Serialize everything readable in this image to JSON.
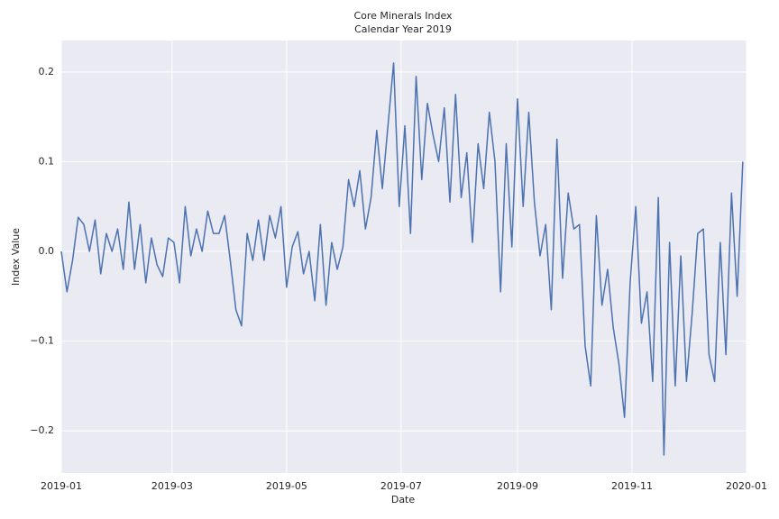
{
  "chart_data": {
    "type": "line",
    "title": "Core Minerals Index",
    "subtitle": "Calendar Year 2019",
    "x_label": "Date",
    "y_label": "Index Value",
    "grid": true,
    "background": "#eaeaf2",
    "x": [
      "2019-01-01",
      "2019-01-04",
      "2019-01-07",
      "2019-01-10",
      "2019-01-13",
      "2019-01-16",
      "2019-01-19",
      "2019-01-22",
      "2019-01-25",
      "2019-01-28",
      "2019-01-31",
      "2019-02-03",
      "2019-02-06",
      "2019-02-09",
      "2019-02-12",
      "2019-02-15",
      "2019-02-18",
      "2019-02-21",
      "2019-02-24",
      "2019-02-27",
      "2019-03-02",
      "2019-03-05",
      "2019-03-08",
      "2019-03-11",
      "2019-03-14",
      "2019-03-17",
      "2019-03-20",
      "2019-03-23",
      "2019-03-26",
      "2019-03-29",
      "2019-04-01",
      "2019-04-04",
      "2019-04-07",
      "2019-04-10",
      "2019-04-13",
      "2019-04-16",
      "2019-04-19",
      "2019-04-22",
      "2019-04-25",
      "2019-04-28",
      "2019-05-01",
      "2019-05-04",
      "2019-05-07",
      "2019-05-10",
      "2019-05-13",
      "2019-05-16",
      "2019-05-19",
      "2019-05-22",
      "2019-05-25",
      "2019-05-28",
      "2019-05-31",
      "2019-06-03",
      "2019-06-06",
      "2019-06-09",
      "2019-06-12",
      "2019-06-15",
      "2019-06-18",
      "2019-06-21",
      "2019-06-24",
      "2019-06-27",
      "2019-06-30",
      "2019-07-03",
      "2019-07-06",
      "2019-07-09",
      "2019-07-12",
      "2019-07-15",
      "2019-07-18",
      "2019-07-21",
      "2019-07-24",
      "2019-07-27",
      "2019-07-30",
      "2019-08-02",
      "2019-08-05",
      "2019-08-08",
      "2019-08-11",
      "2019-08-14",
      "2019-08-17",
      "2019-08-20",
      "2019-08-23",
      "2019-08-26",
      "2019-08-29",
      "2019-09-01",
      "2019-09-04",
      "2019-09-07",
      "2019-09-10",
      "2019-09-13",
      "2019-09-16",
      "2019-09-19",
      "2019-09-22",
      "2019-09-25",
      "2019-09-28",
      "2019-10-01",
      "2019-10-04",
      "2019-10-07",
      "2019-10-10",
      "2019-10-13",
      "2019-10-16",
      "2019-10-19",
      "2019-10-22",
      "2019-10-25",
      "2019-10-28",
      "2019-10-31",
      "2019-11-03",
      "2019-11-06",
      "2019-11-09",
      "2019-11-12",
      "2019-11-15",
      "2019-11-18",
      "2019-11-21",
      "2019-11-24",
      "2019-11-27",
      "2019-11-30",
      "2019-12-03",
      "2019-12-06",
      "2019-12-09",
      "2019-12-12",
      "2019-12-15",
      "2019-12-18",
      "2019-12-21",
      "2019-12-24",
      "2019-12-27",
      "2019-12-30"
    ],
    "series": [
      {
        "name": "Core Minerals Index",
        "color": "#4c72b0",
        "values": [
          0.0,
          -0.045,
          -0.01,
          0.038,
          0.03,
          0.0,
          0.035,
          -0.025,
          0.02,
          0.0,
          0.025,
          -0.02,
          0.055,
          -0.02,
          0.03,
          -0.035,
          0.015,
          -0.015,
          -0.028,
          0.015,
          0.01,
          -0.035,
          0.05,
          -0.005,
          0.025,
          0.0,
          0.045,
          0.02,
          0.02,
          0.04,
          -0.01,
          -0.065,
          -0.083,
          0.02,
          -0.01,
          0.035,
          -0.01,
          0.04,
          0.015,
          0.05,
          -0.04,
          0.005,
          0.022,
          -0.025,
          0.0,
          -0.055,
          0.03,
          -0.06,
          0.01,
          -0.02,
          0.005,
          0.08,
          0.05,
          0.09,
          0.025,
          0.06,
          0.135,
          0.07,
          0.14,
          0.21,
          0.05,
          0.14,
          0.02,
          0.195,
          0.08,
          0.165,
          0.13,
          0.1,
          0.16,
          0.055,
          0.175,
          0.06,
          0.11,
          0.01,
          0.12,
          0.07,
          0.155,
          0.1,
          -0.045,
          0.12,
          0.005,
          0.17,
          0.05,
          0.155,
          0.055,
          -0.005,
          0.03,
          -0.065,
          0.125,
          -0.03,
          0.065,
          0.025,
          0.03,
          -0.105,
          -0.15,
          0.04,
          -0.06,
          -0.02,
          -0.085,
          -0.125,
          -0.185,
          -0.035,
          0.05,
          -0.08,
          -0.045,
          -0.145,
          0.06,
          -0.227,
          0.01,
          -0.15,
          -0.005,
          -0.145,
          -0.07,
          0.02,
          0.025,
          -0.115,
          -0.145,
          0.01,
          -0.115,
          0.065,
          -0.05,
          0.1
        ]
      }
    ],
    "xlim": [
      "2019-01-01",
      "2020-01-01"
    ],
    "xticks": [
      {
        "value": "2019-01-01",
        "label": "2019-01"
      },
      {
        "value": "2019-03-01",
        "label": "2019-03"
      },
      {
        "value": "2019-05-01",
        "label": "2019-05"
      },
      {
        "value": "2019-07-01",
        "label": "2019-07"
      },
      {
        "value": "2019-09-01",
        "label": "2019-09"
      },
      {
        "value": "2019-11-01",
        "label": "2019-11"
      },
      {
        "value": "2020-01-01",
        "label": "2020-01"
      }
    ],
    "ylim": [
      -0.247,
      0.235
    ],
    "yticks": [
      {
        "value": -0.2,
        "label": "−0.2"
      },
      {
        "value": -0.1,
        "label": "−0.1"
      },
      {
        "value": 0,
        "label": "0.0"
      },
      {
        "value": 0.1,
        "label": "0.1"
      },
      {
        "value": 0.2,
        "label": "0.2"
      }
    ]
  }
}
